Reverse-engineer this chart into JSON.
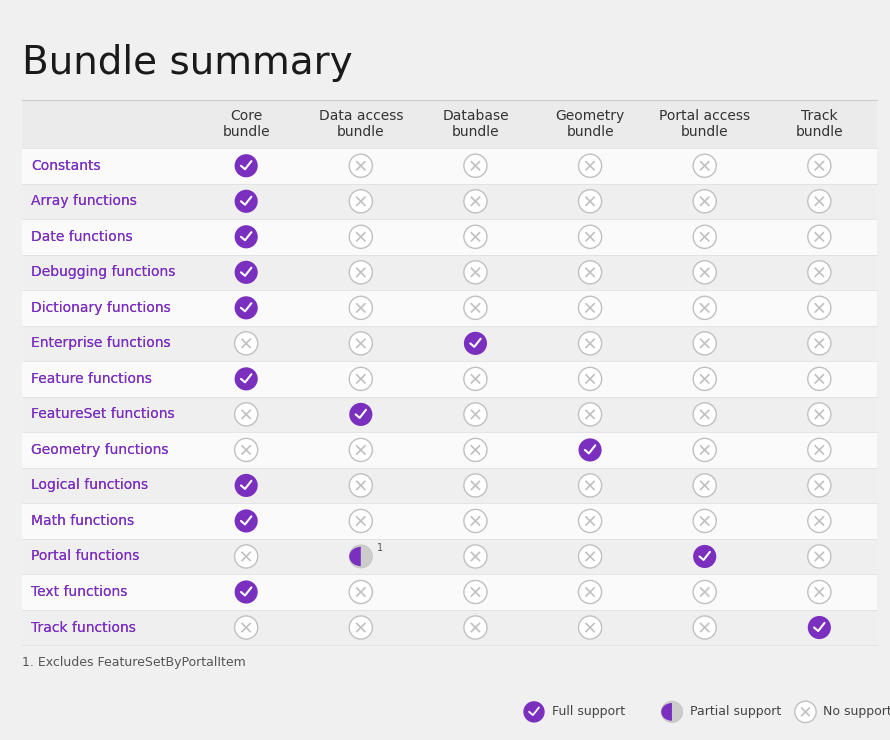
{
  "title": "Bundle summary",
  "col_headers": [
    "Core\nbundle",
    "Data access\nbundle",
    "Database\nbundle",
    "Geometry\nbundle",
    "Portal access\nbundle",
    "Track\nbundle"
  ],
  "rows": [
    "Constants",
    "Array functions",
    "Date functions",
    "Debugging functions",
    "Dictionary functions",
    "Enterprise functions",
    "Feature functions",
    "FeatureSet functions",
    "Geometry functions",
    "Logical functions",
    "Math functions",
    "Portal functions",
    "Text functions",
    "Track functions"
  ],
  "matrix": [
    [
      "full",
      "none",
      "none",
      "none",
      "none",
      "none"
    ],
    [
      "full",
      "none",
      "none",
      "none",
      "none",
      "none"
    ],
    [
      "full",
      "none",
      "none",
      "none",
      "none",
      "none"
    ],
    [
      "full",
      "none",
      "none",
      "none",
      "none",
      "none"
    ],
    [
      "full",
      "none",
      "none",
      "none",
      "none",
      "none"
    ],
    [
      "none",
      "none",
      "full",
      "none",
      "none",
      "none"
    ],
    [
      "full",
      "none",
      "none",
      "none",
      "none",
      "none"
    ],
    [
      "none",
      "full",
      "none",
      "none",
      "none",
      "none"
    ],
    [
      "none",
      "none",
      "none",
      "full",
      "none",
      "none"
    ],
    [
      "full",
      "none",
      "none",
      "none",
      "none",
      "none"
    ],
    [
      "full",
      "none",
      "none",
      "none",
      "none",
      "none"
    ],
    [
      "none",
      "partial",
      "none",
      "none",
      "full",
      "none"
    ],
    [
      "full",
      "none",
      "none",
      "none",
      "none",
      "none"
    ],
    [
      "none",
      "none",
      "none",
      "none",
      "none",
      "full"
    ]
  ],
  "footnote": "1. Excludes FeatureSetByPortalItem",
  "legend_items": [
    "Full support",
    "Partial support",
    "No support"
  ],
  "purple": "#7B2FBE",
  "purple_light": "#9B59D0",
  "gray": "#C0C0C0",
  "gray_light": "#CCCCCC",
  "link_color": "#7B2FBE",
  "bg_color": "#F5F5F5",
  "header_bg": "#EBEBEB",
  "alt_row_bg": "#EFEFEF",
  "white_row_bg": "#FAFAFA",
  "title_fontsize": 28,
  "header_fontsize": 10,
  "row_fontsize": 10,
  "footnote_fontsize": 9,
  "legend_fontsize": 9
}
